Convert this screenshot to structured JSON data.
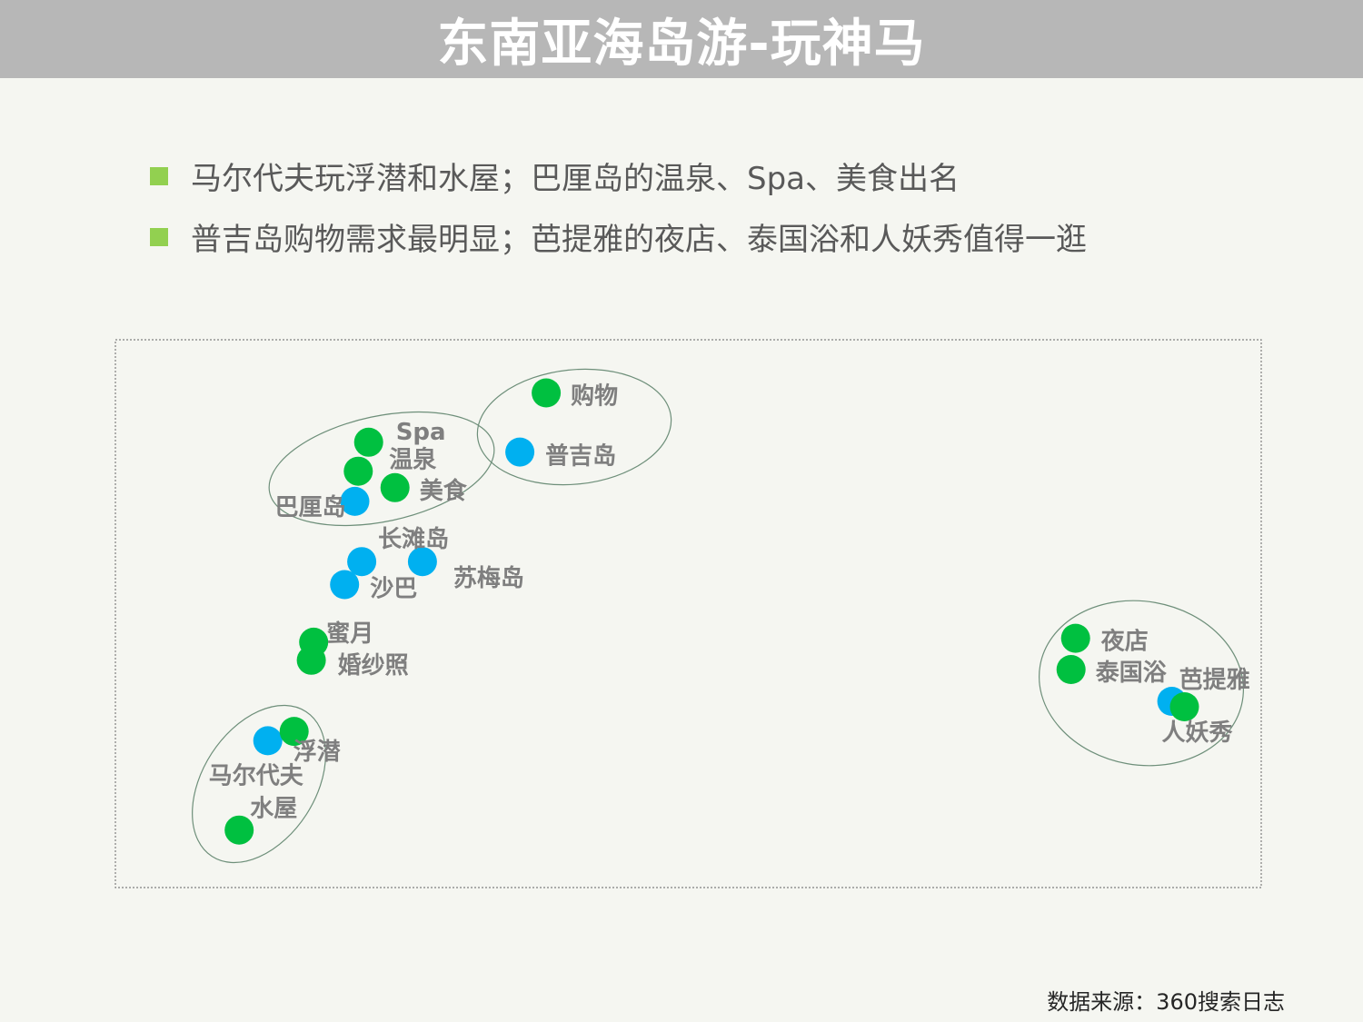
{
  "title": "东南亚海岛游-玩神马",
  "bullets": [
    "马尔代夫玩浮潜和水屋；巴厘岛的温泉、Spa、美食出名",
    "普吉岛购物需求最明显；芭提雅的夜店、泰国浴和人妖秀值得一逛"
  ],
  "colors": {
    "title_bar": "#b7b7b7",
    "bullet_marker": "#92d050",
    "destination_point": "#00b0f0",
    "activity_point": "#00c040",
    "label": "#7f7f7f",
    "cluster_outline": "#6e8f7a",
    "frame": "#7f7f7f"
  },
  "source": "数据来源：360搜索日志",
  "chart_data": {
    "type": "scatter",
    "title": "",
    "xlabel": "",
    "ylabel": "",
    "x_range": [
      0,
      100
    ],
    "y_range": [
      0,
      100
    ],
    "grid": false,
    "legend": "none",
    "series": [
      {
        "kind": "destination",
        "points": [
          {
            "label": "普吉岛",
            "x": 35.3,
            "y": 79.5
          },
          {
            "label": "巴厘岛",
            "x": 20.9,
            "y": 70.5
          },
          {
            "label": "长滩岛",
            "x": 21.5,
            "y": 59.5
          },
          {
            "label": "苏梅岛",
            "x": 26.8,
            "y": 59.5
          },
          {
            "label": "沙巴",
            "x": 20.0,
            "y": 55.3
          },
          {
            "label": "马尔代夫",
            "x": 13.3,
            "y": 26.8
          },
          {
            "label": "芭提雅",
            "x": 92.2,
            "y": 34.0
          }
        ]
      },
      {
        "kind": "activity",
        "points": [
          {
            "label": "购物",
            "x": 37.6,
            "y": 90.3
          },
          {
            "label": "Spa",
            "x": 22.1,
            "y": 81.3
          },
          {
            "label": "温泉",
            "x": 21.2,
            "y": 76.0
          },
          {
            "label": "美食",
            "x": 24.4,
            "y": 73.0
          },
          {
            "label": "蜜月",
            "x": 17.3,
            "y": 44.8
          },
          {
            "label": "婚纱照",
            "x": 17.1,
            "y": 41.5
          },
          {
            "label": "浮潜",
            "x": 15.6,
            "y": 28.5
          },
          {
            "label": "水屋",
            "x": 10.8,
            "y": 10.5
          },
          {
            "label": "夜店",
            "x": 83.8,
            "y": 45.5
          },
          {
            "label": "泰国浴",
            "x": 83.4,
            "y": 39.8
          },
          {
            "label": "人妖秀",
            "x": 93.3,
            "y": 33.0
          }
        ]
      }
    ]
  }
}
